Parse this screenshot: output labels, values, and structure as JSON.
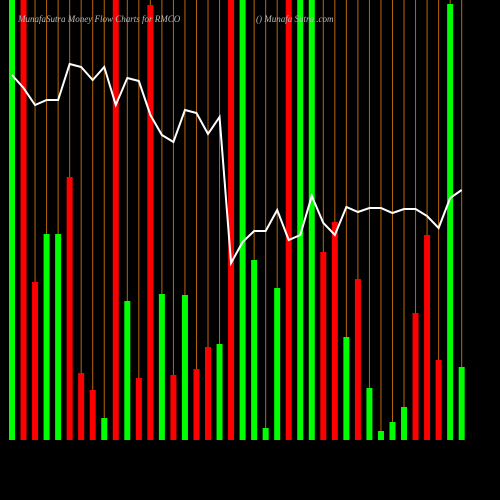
{
  "chart_data": {
    "type": "bar",
    "title": "MunafaSutra  Money Flow  Charts for RMCO",
    "subtitle": "() Munafa Sutra .com",
    "ylim": [
      0,
      440
    ],
    "bars": {
      "values": [
        440,
        440,
        158,
        206,
        206,
        263,
        67,
        50,
        22,
        440,
        139,
        62,
        435,
        146,
        65,
        145,
        71,
        93,
        96,
        440,
        440,
        180,
        12,
        152,
        440,
        440,
        440,
        188,
        218,
        103,
        161,
        52,
        9,
        18,
        33,
        127,
        205,
        80,
        436,
        73
      ],
      "colors": [
        "#00ff00",
        "#ff0000",
        "#ff0000",
        "#00ff00",
        "#00ff00",
        "#ff0000",
        "#ff0000",
        "#ff0000",
        "#00ff00",
        "#ff0000",
        "#00ff00",
        "#ff0000",
        "#ff0000",
        "#00ff00",
        "#ff0000",
        "#00ff00",
        "#ff0000",
        "#ff0000",
        "#00ff00",
        "#ff0000",
        "#00ff00",
        "#00ff00",
        "#00ff00",
        "#00ff00",
        "#ff0000",
        "#00ff00",
        "#00ff00",
        "#ff0000",
        "#ff0000",
        "#00ff00",
        "#ff0000",
        "#00ff00",
        "#00ff00",
        "#00ff00",
        "#00ff00",
        "#ff0000",
        "#ff0000",
        "#ff0000",
        "#00ff00",
        "#00ff00"
      ]
    },
    "line": {
      "color": "#ffffff",
      "values": [
        365,
        352,
        335,
        340,
        340,
        376,
        373,
        360,
        373,
        335,
        362,
        359,
        325,
        305,
        298,
        330,
        327,
        306,
        323,
        177,
        198,
        209,
        209,
        230,
        200,
        205,
        244,
        217,
        205,
        233,
        228,
        232,
        232,
        227,
        231,
        231,
        224,
        212,
        242,
        250
      ]
    },
    "gridline_color": "#b8660b"
  }
}
